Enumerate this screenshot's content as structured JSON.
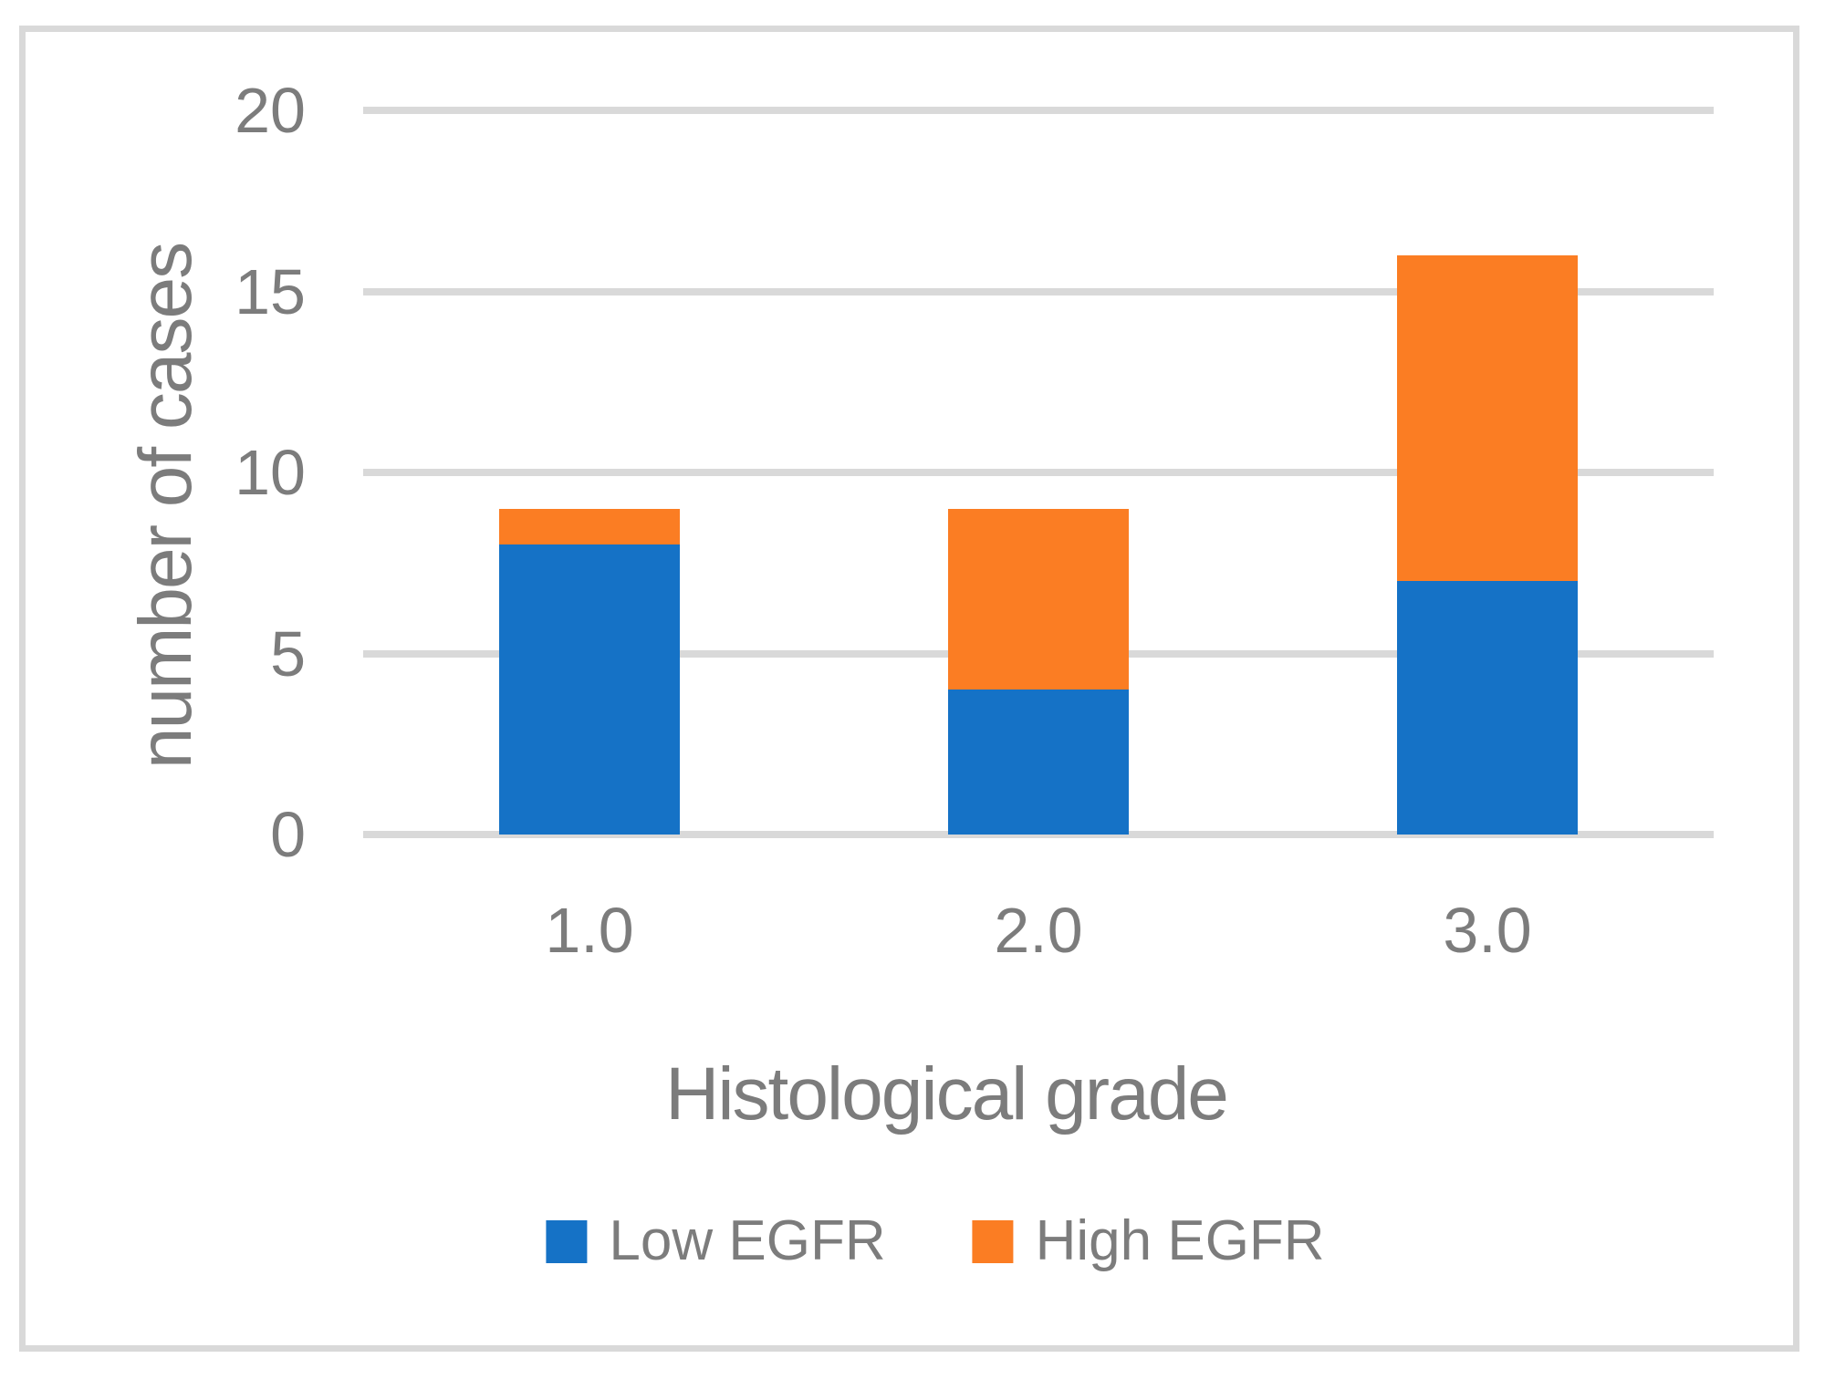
{
  "chart_data": {
    "type": "bar",
    "stacked": true,
    "categories": [
      "1.0",
      "2.0",
      "3.0"
    ],
    "series": [
      {
        "name": "Low EGFR",
        "color": "#1572C6",
        "values": [
          8,
          4,
          7
        ]
      },
      {
        "name": "High EGFR",
        "color": "#FB7D23",
        "values": [
          1,
          5,
          9
        ]
      }
    ],
    "title": "",
    "xlabel": "Histological grade",
    "ylabel": "number of cases",
    "ylim": [
      0,
      20
    ],
    "yticks": [
      0,
      5,
      10,
      15,
      20
    ],
    "ytick_labels": [
      "0",
      "5",
      "10",
      "15",
      "20"
    ],
    "grid": true,
    "legend_position": "bottom"
  },
  "style": {
    "text_color": "#7C7C7C",
    "grid_color": "#D9D9D9",
    "border_color": "#D9D9D9",
    "background": "#FFFFFF"
  }
}
